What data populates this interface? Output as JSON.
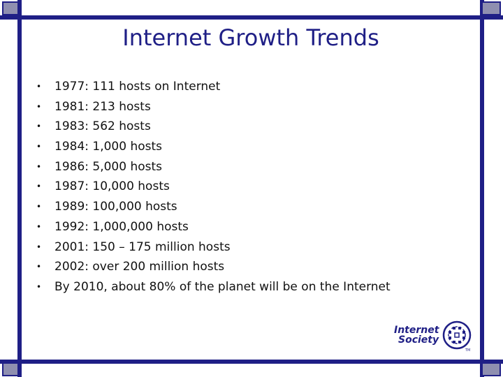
{
  "slide": {
    "title": "Internet Growth Trends",
    "bullets": [
      {
        "marker": "•",
        "text": "1977: 111 hosts on Internet"
      },
      {
        "marker": "•",
        "text": "1981: 213 hosts"
      },
      {
        "marker": "•",
        "text": "1983: 562 hosts"
      },
      {
        "marker": "•",
        "text": "1984: 1,000 hosts"
      },
      {
        "marker": "•",
        "text": "1986: 5,000 hosts"
      },
      {
        "marker": "•",
        "text": "1987: 10,000 hosts"
      },
      {
        "marker": "•",
        "text": "1989: 100,000 hosts"
      },
      {
        "marker": "•",
        "text": "1992: 1,000,000 hosts"
      },
      {
        "marker": "•",
        "text": "2001: 150 – 175 million hosts"
      },
      {
        "marker": "•",
        "text": "2002: over 200 million hosts"
      },
      {
        "marker": "•",
        "text": "By 2010, about 80% of the planet will be on the Internet"
      }
    ]
  },
  "logo": {
    "line1": "Internet",
    "line2": "Society",
    "trademark": "TM",
    "icon": "internet-society-globe-icon"
  },
  "colors": {
    "frame": "#1f1f86",
    "corner_fill": "#8f8fb0",
    "title": "#1f1f86",
    "text": "#111111"
  }
}
